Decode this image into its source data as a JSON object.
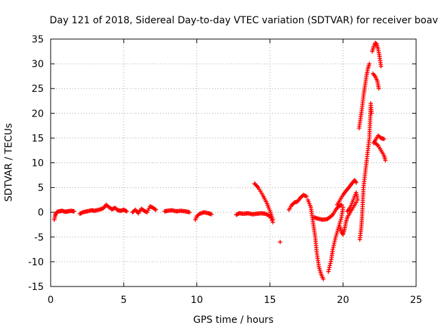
{
  "chart_data": {
    "type": "scatter",
    "title": "Day 121 of 2018, Sidereal Day-to-day VTEC variation (SDTVAR) for receiver boav",
    "xlabel": "GPS time / hours",
    "ylabel": "SDTVAR / TECUs",
    "xlim": [
      0,
      25
    ],
    "ylim": [
      -15,
      35
    ],
    "xticks": [
      "0",
      "5",
      "10",
      "15",
      "20",
      "25"
    ],
    "yticks": [
      "-15",
      "-10",
      "-5",
      "0",
      "5",
      "10",
      "15",
      "20",
      "25",
      "30",
      "35"
    ],
    "grid": true,
    "marker": "plus",
    "series": [
      {
        "name": "SDTVAR",
        "color": "#ff0000",
        "segments": [
          [
            [
              0.25,
              -1.5
            ],
            [
              0.3,
              -0.8
            ],
            [
              0.35,
              -0.3
            ],
            [
              0.45,
              0.1
            ],
            [
              0.6,
              0.2
            ],
            [
              0.8,
              0.3
            ],
            [
              1.0,
              0.1
            ],
            [
              1.2,
              0.2
            ],
            [
              1.4,
              0.3
            ],
            [
              1.6,
              0.2
            ]
          ],
          [
            [
              2.0,
              -0.3
            ],
            [
              2.2,
              0.0
            ],
            [
              2.5,
              0.2
            ],
            [
              2.8,
              0.4
            ],
            [
              3.0,
              0.3
            ],
            [
              3.3,
              0.5
            ],
            [
              3.6,
              0.8
            ],
            [
              3.8,
              1.5
            ],
            [
              4.0,
              1.0
            ],
            [
              4.2,
              0.6
            ],
            [
              4.4,
              0.9
            ],
            [
              4.6,
              0.4
            ],
            [
              4.8,
              0.3
            ],
            [
              5.0,
              0.5
            ],
            [
              5.2,
              0.2
            ]
          ],
          [
            [
              5.6,
              0.0
            ],
            [
              5.8,
              0.5
            ],
            [
              6.0,
              -0.2
            ],
            [
              6.2,
              0.7
            ],
            [
              6.4,
              0.3
            ],
            [
              6.6,
              0.0
            ],
            [
              6.8,
              1.2
            ],
            [
              7.0,
              0.9
            ],
            [
              7.2,
              0.5
            ]
          ],
          [
            [
              7.8,
              0.2
            ],
            [
              8.0,
              0.3
            ],
            [
              8.3,
              0.4
            ],
            [
              8.6,
              0.2
            ],
            [
              8.9,
              0.3
            ],
            [
              9.2,
              0.2
            ],
            [
              9.5,
              0.0
            ]
          ],
          [
            [
              9.9,
              -1.5
            ],
            [
              10.0,
              -0.8
            ],
            [
              10.2,
              -0.3
            ],
            [
              10.5,
              0.0
            ],
            [
              10.8,
              -0.2
            ],
            [
              11.0,
              -0.4
            ]
          ],
          [
            [
              12.7,
              -0.5
            ],
            [
              12.9,
              -0.2
            ],
            [
              13.2,
              -0.3
            ],
            [
              13.5,
              -0.2
            ],
            [
              13.8,
              -0.4
            ],
            [
              14.1,
              -0.3
            ],
            [
              14.4,
              -0.2
            ],
            [
              14.7,
              -0.3
            ],
            [
              15.0,
              -0.8
            ],
            [
              15.2,
              -2.0
            ]
          ],
          [
            [
              13.95,
              5.8
            ],
            [
              14.2,
              5.0
            ],
            [
              14.5,
              3.5
            ],
            [
              14.8,
              1.8
            ],
            [
              15.0,
              0.3
            ],
            [
              15.2,
              -1.5
            ]
          ],
          [
            [
              15.7,
              -6.0
            ]
          ],
          [
            [
              16.3,
              0.5
            ],
            [
              16.5,
              1.5
            ],
            [
              16.7,
              2.0
            ],
            [
              16.9,
              2.2
            ],
            [
              17.1,
              3.0
            ],
            [
              17.3,
              3.5
            ],
            [
              17.5,
              3.2
            ]
          ],
          [
            [
              17.6,
              2.5
            ],
            [
              17.8,
              1.0
            ],
            [
              17.9,
              -1.0
            ],
            [
              18.0,
              -3.0
            ],
            [
              18.1,
              -5.0
            ],
            [
              18.2,
              -8.0
            ],
            [
              18.35,
              -11.0
            ],
            [
              18.5,
              -12.5
            ],
            [
              18.65,
              -13.5
            ]
          ],
          [
            [
              18.0,
              -1.0
            ],
            [
              18.3,
              -1.3
            ],
            [
              18.6,
              -1.5
            ],
            [
              18.9,
              -1.4
            ],
            [
              19.1,
              -1.0
            ],
            [
              19.3,
              -0.5
            ],
            [
              19.5,
              0.5
            ],
            [
              19.7,
              1.2
            ],
            [
              19.9,
              1.5
            ]
          ],
          [
            [
              19.0,
              -12.0
            ],
            [
              19.2,
              -9.5
            ],
            [
              19.3,
              -7.5
            ],
            [
              19.5,
              -5.0
            ],
            [
              19.7,
              -3.0
            ],
            [
              19.9,
              -1.0
            ],
            [
              20.0,
              1.0
            ]
          ],
          [
            [
              19.8,
              -3.0
            ],
            [
              19.9,
              -4.0
            ],
            [
              20.0,
              -4.5
            ],
            [
              20.1,
              -3.5
            ],
            [
              20.2,
              -2.0
            ],
            [
              20.3,
              -1.0
            ],
            [
              20.5,
              0.0
            ],
            [
              20.7,
              1.0
            ],
            [
              20.9,
              2.0
            ]
          ],
          [
            [
              19.6,
              1.5
            ],
            [
              19.8,
              2.5
            ],
            [
              20.0,
              3.5
            ],
            [
              20.2,
              4.3
            ],
            [
              20.4,
              5.0
            ],
            [
              20.6,
              5.8
            ],
            [
              20.8,
              6.5
            ],
            [
              20.9,
              6.0
            ]
          ],
          [
            [
              20.3,
              0.2
            ],
            [
              20.5,
              1.0
            ],
            [
              20.7,
              2.5
            ],
            [
              20.9,
              4.0
            ],
            [
              21.0,
              2.5
            ]
          ],
          [
            [
              21.15,
              -5.5
            ],
            [
              21.25,
              -3.0
            ],
            [
              21.3,
              -1.0
            ],
            [
              21.35,
              2.0
            ],
            [
              21.4,
              5.0
            ],
            [
              21.5,
              7.5
            ],
            [
              21.6,
              10.0
            ],
            [
              21.7,
              12.5
            ],
            [
              21.8,
              15.0
            ],
            [
              21.85,
              18.0
            ],
            [
              21.9,
              22.0
            ],
            [
              21.95,
              20.0
            ]
          ],
          [
            [
              21.1,
              17.0
            ],
            [
              21.2,
              19.0
            ],
            [
              21.3,
              21.0
            ],
            [
              21.4,
              23.5
            ],
            [
              21.5,
              25.5
            ],
            [
              21.6,
              27.5
            ],
            [
              21.7,
              29.0
            ],
            [
              21.8,
              30.0
            ]
          ],
          [
            [
              22.0,
              32.5
            ],
            [
              22.1,
              33.5
            ],
            [
              22.2,
              34.2
            ],
            [
              22.3,
              34.0
            ],
            [
              22.4,
              33.0
            ],
            [
              22.5,
              31.5
            ],
            [
              22.6,
              29.5
            ]
          ],
          [
            [
              22.05,
              28.0
            ],
            [
              22.2,
              27.5
            ],
            [
              22.35,
              26.5
            ],
            [
              22.45,
              25.0
            ]
          ],
          [
            [
              22.1,
              14.0
            ],
            [
              22.2,
              14.5
            ],
            [
              22.4,
              15.5
            ],
            [
              22.6,
              15.0
            ],
            [
              22.8,
              14.8
            ]
          ],
          [
            [
              22.2,
              14.0
            ],
            [
              22.4,
              13.5
            ],
            [
              22.6,
              12.5
            ],
            [
              22.8,
              11.5
            ],
            [
              22.9,
              10.5
            ]
          ]
        ]
      }
    ]
  }
}
